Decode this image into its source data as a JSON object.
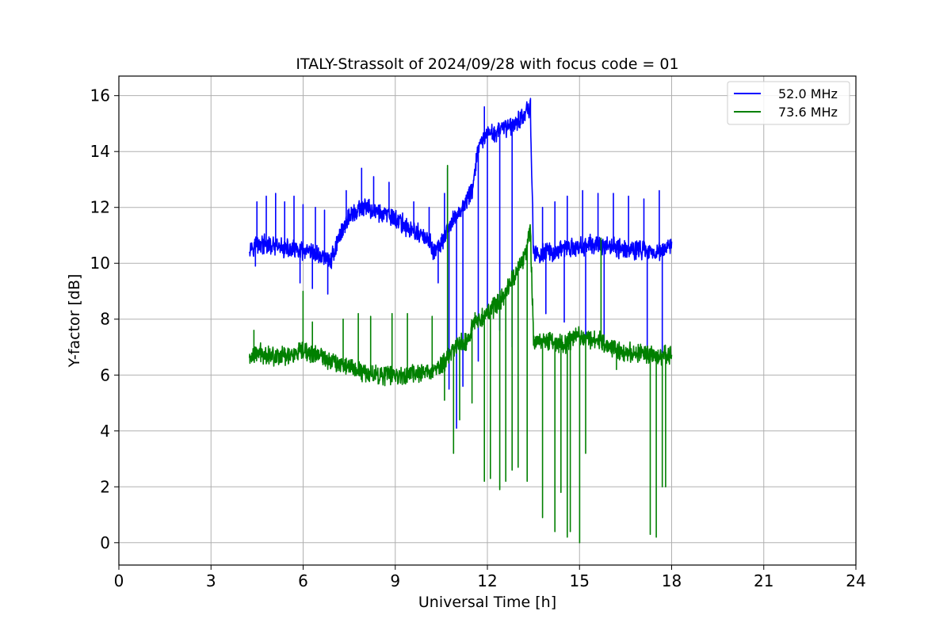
{
  "chart_data": {
    "type": "line",
    "title": "ITALY-Strassolt of 2024/09/28 with focus code = 01",
    "xlabel": "Universal Time [h]",
    "ylabel": "Y-factor [dB]",
    "xlim": [
      0,
      24
    ],
    "ylim": [
      -0.8,
      16.7
    ],
    "xticks": [
      0,
      3,
      6,
      9,
      12,
      15,
      18,
      21,
      24
    ],
    "yticks": [
      0,
      2,
      4,
      6,
      8,
      10,
      12,
      14,
      16
    ],
    "grid": true,
    "legend_position": "top-right",
    "series": [
      {
        "name": "52.0 MHz",
        "color": "#0000ff",
        "x": [
          4.25,
          4.6,
          5.0,
          5.5,
          6.0,
          6.5,
          6.9,
          7.2,
          7.5,
          8.0,
          8.5,
          9.0,
          9.5,
          10.0,
          10.3,
          10.6,
          10.9,
          11.2,
          11.5,
          11.7,
          12.0,
          12.5,
          13.0,
          13.4,
          13.5,
          14.0,
          14.5,
          15.0,
          15.5,
          16.0,
          16.5,
          17.0,
          17.5,
          18.0
        ],
        "y": [
          10.6,
          10.7,
          10.6,
          10.5,
          10.4,
          10.3,
          10.1,
          11.0,
          11.7,
          12.0,
          11.8,
          11.6,
          11.2,
          10.9,
          10.4,
          10.9,
          11.6,
          12.0,
          12.6,
          14.1,
          14.6,
          14.8,
          15.1,
          15.6,
          10.3,
          10.4,
          10.5,
          10.6,
          10.7,
          10.6,
          10.5,
          10.5,
          10.4,
          10.6
        ],
        "spikes": [
          {
            "x": 4.5,
            "y": 12.2
          },
          {
            "x": 4.8,
            "y": 12.4
          },
          {
            "x": 5.1,
            "y": 12.5
          },
          {
            "x": 5.4,
            "y": 12.2
          },
          {
            "x": 5.7,
            "y": 12.4
          },
          {
            "x": 6.0,
            "y": 12.1
          },
          {
            "x": 6.4,
            "y": 12.0
          },
          {
            "x": 6.7,
            "y": 11.9
          },
          {
            "x": 7.4,
            "y": 12.6
          },
          {
            "x": 7.9,
            "y": 13.4
          },
          {
            "x": 8.3,
            "y": 13.1
          },
          {
            "x": 8.8,
            "y": 12.9
          },
          {
            "x": 9.6,
            "y": 12.2
          },
          {
            "x": 10.1,
            "y": 12.0
          },
          {
            "x": 10.6,
            "y": 12.5
          },
          {
            "x": 10.7,
            "y": 13.4
          },
          {
            "x": 11.9,
            "y": 15.6
          },
          {
            "x": 13.4,
            "y": 15.9
          },
          {
            "x": 13.8,
            "y": 12.0
          },
          {
            "x": 14.2,
            "y": 12.2
          },
          {
            "x": 14.6,
            "y": 12.4
          },
          {
            "x": 15.1,
            "y": 12.6
          },
          {
            "x": 15.6,
            "y": 12.5
          },
          {
            "x": 16.1,
            "y": 12.5
          },
          {
            "x": 16.6,
            "y": 12.4
          },
          {
            "x": 17.1,
            "y": 12.3
          },
          {
            "x": 17.6,
            "y": 12.6
          },
          {
            "x": 4.45,
            "y": 9.9
          },
          {
            "x": 5.9,
            "y": 9.3
          },
          {
            "x": 6.3,
            "y": 9.1
          },
          {
            "x": 6.8,
            "y": 8.9
          },
          {
            "x": 10.4,
            "y": 9.3
          },
          {
            "x": 10.75,
            "y": 5.5
          },
          {
            "x": 11.0,
            "y": 4.1
          },
          {
            "x": 11.2,
            "y": 5.6
          },
          {
            "x": 11.7,
            "y": 6.5
          },
          {
            "x": 12.0,
            "y": 8.4
          },
          {
            "x": 12.4,
            "y": 7.6
          },
          {
            "x": 12.8,
            "y": 7.0
          },
          {
            "x": 13.9,
            "y": 8.2
          },
          {
            "x": 14.5,
            "y": 7.9
          },
          {
            "x": 15.2,
            "y": 7.4
          },
          {
            "x": 15.8,
            "y": 7.2
          },
          {
            "x": 17.2,
            "y": 7.0
          },
          {
            "x": 17.7,
            "y": 6.8
          }
        ]
      },
      {
        "name": "73.6 MHz",
        "color": "#008000",
        "x": [
          4.25,
          4.6,
          5.0,
          5.5,
          6.0,
          6.5,
          7.0,
          7.5,
          8.0,
          8.5,
          9.0,
          9.5,
          10.0,
          10.5,
          11.0,
          11.3,
          11.6,
          11.9,
          12.2,
          12.5,
          12.8,
          13.1,
          13.3,
          13.4,
          13.5,
          14.0,
          14.5,
          15.0,
          15.5,
          16.0,
          16.5,
          17.0,
          17.5,
          18.0
        ],
        "y": [
          6.6,
          6.8,
          6.7,
          6.7,
          6.8,
          6.7,
          6.5,
          6.3,
          6.1,
          6.0,
          6.0,
          6.0,
          6.1,
          6.3,
          7.1,
          7.2,
          7.9,
          8.2,
          8.4,
          8.8,
          9.4,
          10.0,
          10.6,
          11.2,
          7.3,
          7.2,
          7.1,
          7.4,
          7.3,
          7.0,
          6.8,
          6.8,
          6.7,
          6.7
        ],
        "spikes": [
          {
            "x": 4.4,
            "y": 7.6
          },
          {
            "x": 6.0,
            "y": 9.0
          },
          {
            "x": 6.3,
            "y": 7.9
          },
          {
            "x": 7.3,
            "y": 8.0
          },
          {
            "x": 7.8,
            "y": 8.2
          },
          {
            "x": 8.2,
            "y": 8.1
          },
          {
            "x": 8.9,
            "y": 8.2
          },
          {
            "x": 9.4,
            "y": 8.2
          },
          {
            "x": 10.2,
            "y": 8.1
          },
          {
            "x": 10.7,
            "y": 13.5
          },
          {
            "x": 13.8,
            "y": 8.2
          },
          {
            "x": 14.6,
            "y": 7.8
          },
          {
            "x": 15.7,
            "y": 10.9
          },
          {
            "x": 10.6,
            "y": 5.1
          },
          {
            "x": 10.9,
            "y": 3.2
          },
          {
            "x": 11.1,
            "y": 4.4
          },
          {
            "x": 11.5,
            "y": 5.0
          },
          {
            "x": 11.9,
            "y": 2.2
          },
          {
            "x": 12.1,
            "y": 2.3
          },
          {
            "x": 12.4,
            "y": 1.9
          },
          {
            "x": 12.6,
            "y": 2.2
          },
          {
            "x": 12.8,
            "y": 2.6
          },
          {
            "x": 13.0,
            "y": 2.7
          },
          {
            "x": 13.3,
            "y": 2.2
          },
          {
            "x": 13.8,
            "y": 0.9
          },
          {
            "x": 14.2,
            "y": 0.4
          },
          {
            "x": 14.4,
            "y": 1.8
          },
          {
            "x": 14.6,
            "y": 0.2
          },
          {
            "x": 14.7,
            "y": 0.4
          },
          {
            "x": 15.0,
            "y": 0.0
          },
          {
            "x": 15.2,
            "y": 3.2
          },
          {
            "x": 17.3,
            "y": 0.3
          },
          {
            "x": 17.5,
            "y": 0.2
          },
          {
            "x": 17.7,
            "y": 2.0
          },
          {
            "x": 17.8,
            "y": 2.0
          },
          {
            "x": 16.2,
            "y": 6.2
          }
        ]
      }
    ]
  }
}
